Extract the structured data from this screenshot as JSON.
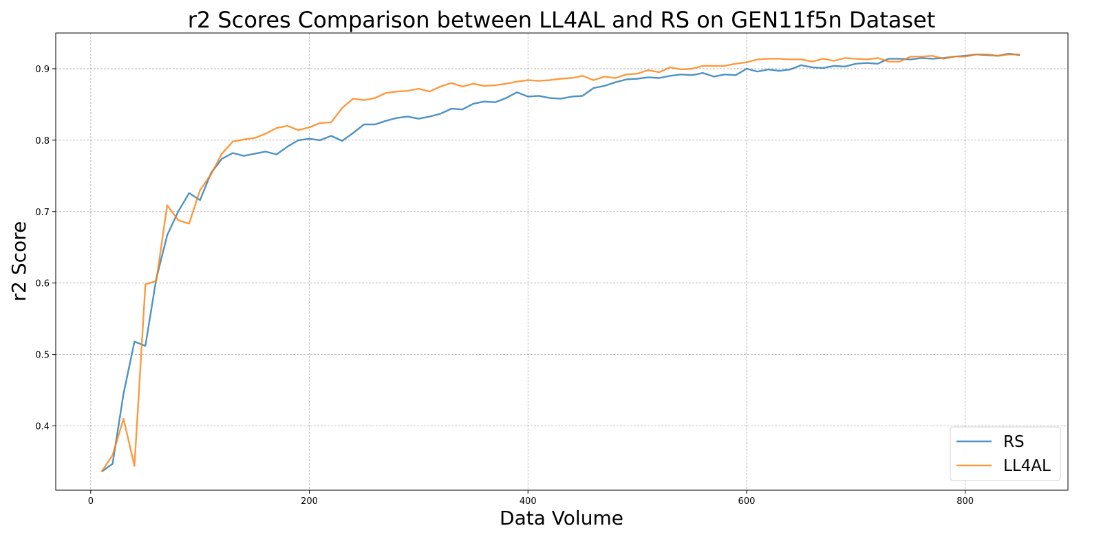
{
  "chart_data": {
    "type": "line",
    "title": "r2 Scores Comparison between LL4AL and RS on GEN11f5n Dataset",
    "xlabel": "Data Volume",
    "ylabel": "r2 Score",
    "xlim": [
      -32,
      894
    ],
    "ylim": [
      0.31,
      0.95
    ],
    "xticks": [
      0,
      200,
      400,
      600,
      800
    ],
    "yticks": [
      0.4,
      0.5,
      0.6,
      0.7,
      0.8,
      0.9
    ],
    "grid": true,
    "legend_position": "bottom-right",
    "x": [
      10,
      20,
      30,
      40,
      50,
      60,
      70,
      80,
      90,
      100,
      110,
      120,
      130,
      140,
      150,
      160,
      170,
      180,
      190,
      200,
      210,
      220,
      230,
      240,
      250,
      260,
      270,
      280,
      290,
      300,
      310,
      320,
      330,
      340,
      350,
      360,
      370,
      380,
      390,
      400,
      410,
      420,
      430,
      440,
      450,
      460,
      470,
      480,
      490,
      500,
      510,
      520,
      530,
      540,
      550,
      560,
      570,
      580,
      590,
      600,
      610,
      620,
      630,
      640,
      650,
      660,
      670,
      680,
      690,
      700,
      710,
      720,
      730,
      740,
      750,
      760,
      770,
      780,
      790,
      800,
      810,
      820,
      830,
      840,
      850
    ],
    "series": [
      {
        "name": "RS",
        "color": "#1f77b4",
        "values": [
          0.336,
          0.347,
          0.445,
          0.518,
          0.512,
          0.606,
          0.667,
          0.7,
          0.726,
          0.716,
          0.754,
          0.774,
          0.782,
          0.778,
          0.781,
          0.784,
          0.78,
          0.791,
          0.8,
          0.802,
          0.8,
          0.806,
          0.799,
          0.81,
          0.822,
          0.822,
          0.827,
          0.831,
          0.833,
          0.83,
          0.833,
          0.837,
          0.844,
          0.843,
          0.851,
          0.854,
          0.853,
          0.859,
          0.867,
          0.861,
          0.862,
          0.859,
          0.858,
          0.861,
          0.862,
          0.873,
          0.876,
          0.881,
          0.885,
          0.886,
          0.888,
          0.887,
          0.89,
          0.892,
          0.891,
          0.894,
          0.889,
          0.892,
          0.891,
          0.9,
          0.896,
          0.899,
          0.897,
          0.899,
          0.905,
          0.902,
          0.901,
          0.904,
          0.903,
          0.907,
          0.908,
          0.907,
          0.914,
          0.914,
          0.913,
          0.915,
          0.914,
          0.915,
          0.917,
          0.918,
          0.92,
          0.919,
          0.918,
          0.921,
          0.919
        ]
      },
      {
        "name": "LL4AL",
        "color": "#ff7f0e",
        "values": [
          0.336,
          0.359,
          0.41,
          0.344,
          0.598,
          0.603,
          0.709,
          0.688,
          0.683,
          0.73,
          0.752,
          0.781,
          0.798,
          0.801,
          0.803,
          0.809,
          0.817,
          0.82,
          0.814,
          0.818,
          0.824,
          0.825,
          0.845,
          0.858,
          0.856,
          0.859,
          0.866,
          0.868,
          0.869,
          0.872,
          0.868,
          0.875,
          0.88,
          0.875,
          0.879,
          0.876,
          0.877,
          0.879,
          0.882,
          0.884,
          0.883,
          0.884,
          0.886,
          0.887,
          0.89,
          0.884,
          0.889,
          0.887,
          0.892,
          0.893,
          0.898,
          0.895,
          0.902,
          0.899,
          0.9,
          0.904,
          0.904,
          0.904,
          0.907,
          0.909,
          0.913,
          0.914,
          0.914,
          0.913,
          0.913,
          0.91,
          0.914,
          0.911,
          0.915,
          0.914,
          0.913,
          0.915,
          0.91,
          0.91,
          0.917,
          0.917,
          0.918,
          0.914,
          0.917,
          0.917,
          0.92,
          0.92,
          0.918,
          0.92,
          0.92
        ]
      }
    ]
  }
}
